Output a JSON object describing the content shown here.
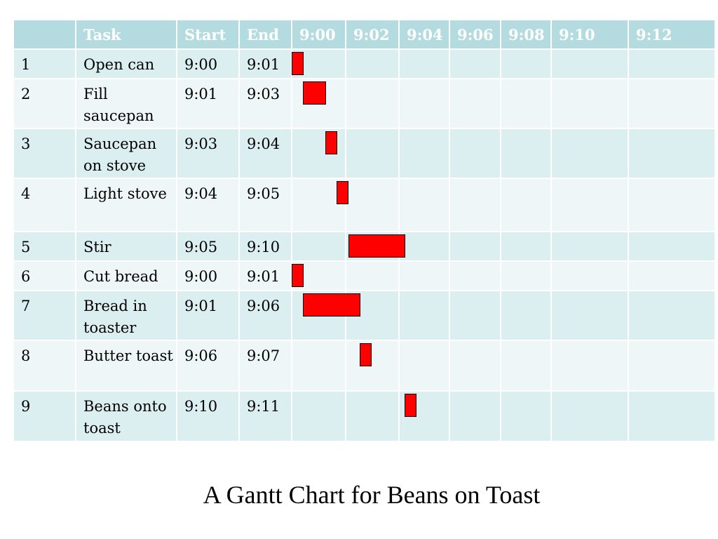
{
  "chart_data": {
    "type": "gantt",
    "title": "A Gantt Chart for Beans on Toast",
    "columns": [
      "",
      "Task",
      "Start",
      "End"
    ],
    "time_ticks": [
      "9:00",
      "9:02",
      "9:04",
      "9:06",
      "9:08",
      "9:10",
      "9:12"
    ],
    "time_range": [
      "9:00",
      "9:13"
    ],
    "bar_color": "#ff0000",
    "tasks": [
      {
        "id": "1",
        "name": "Open can",
        "start": "9:00",
        "end": "9:01"
      },
      {
        "id": "2",
        "name": "Fill saucepan",
        "start": "9:01",
        "end": "9:03"
      },
      {
        "id": "3",
        "name": "Saucepan on stove",
        "start": "9:03",
        "end": "9:04"
      },
      {
        "id": "4",
        "name": "Light stove",
        "start": "9:04",
        "end": "9:05"
      },
      {
        "id": "5",
        "name": "Stir",
        "start": "9:05",
        "end": "9:10"
      },
      {
        "id": "6",
        "name": "Cut bread",
        "start": "9:00",
        "end": "9:01"
      },
      {
        "id": "7",
        "name": "Bread in toaster",
        "start": "9:01",
        "end": "9:06"
      },
      {
        "id": "8",
        "name": "Butter toast",
        "start": "9:06",
        "end": "9:07"
      },
      {
        "id": "9",
        "name": "Beans onto toast",
        "start": "9:10",
        "end": "9:11"
      }
    ]
  }
}
